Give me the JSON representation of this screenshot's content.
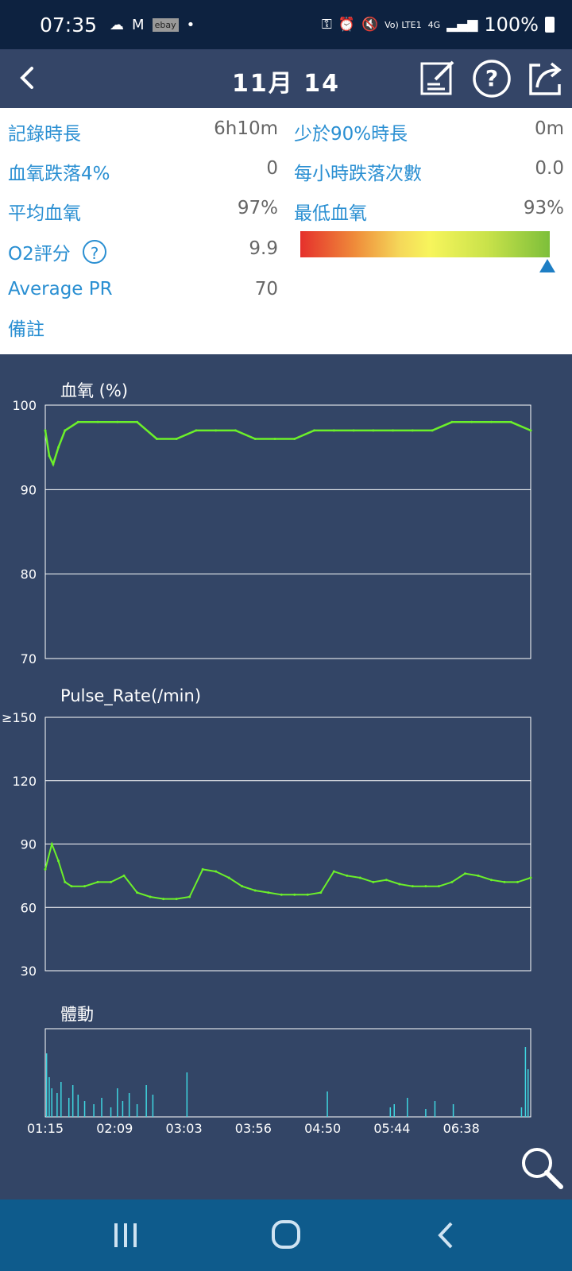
{
  "status_bar": {
    "time": "07:35",
    "mail_letter": "M",
    "ebay_label": "ebay",
    "network": "Vo) LTE1",
    "network_type": "4G",
    "battery": "100%"
  },
  "header": {
    "title": "11月 14"
  },
  "summary": {
    "rows": [
      {
        "label": "記錄時長",
        "value": "6h10m"
      },
      {
        "label": "血氧跌落4%",
        "value": "0"
      },
      {
        "label": "平均血氧",
        "value": "97%"
      },
      {
        "label": "O2評分",
        "value": "9.9"
      },
      {
        "label": "Average PR",
        "value": "70"
      },
      {
        "label": "備註",
        "value": ""
      }
    ],
    "right_rows": [
      {
        "label": "少於90%時長",
        "value": "0m"
      },
      {
        "label": "每小時跌落次數",
        "value": "0.0"
      },
      {
        "label": "最低血氧",
        "value": "93%"
      }
    ],
    "o2_help_symbol": "?",
    "score_level": 0.99
  },
  "colors": {
    "header_bg": "#344567",
    "chart_bg": "#334566",
    "series_line": "#6cf02a",
    "motion_line": "#3fd6e0",
    "label_blue": "#2a8fd2",
    "nav_bg": "#0e5b8c",
    "status_bg": "#0d2240"
  },
  "chart_data": [
    {
      "type": "line",
      "title": "血氧 (%)",
      "ylim": [
        70,
        100
      ],
      "y_ticks": [
        "100",
        "90",
        "80",
        "70"
      ],
      "x_range": [
        "01:15",
        "07:25"
      ],
      "series": [
        {
          "x": [
            "01:15",
            "01:18",
            "01:21",
            "01:25",
            "01:30",
            "01:40",
            "01:55",
            "02:10",
            "02:25",
            "02:40",
            "02:55",
            "03:10",
            "03:25",
            "03:40",
            "03:55",
            "04:10",
            "04:25",
            "04:40",
            "04:55",
            "05:10",
            "05:25",
            "05:40",
            "05:55",
            "06:10",
            "06:25",
            "06:40",
            "06:55",
            "07:10",
            "07:25"
          ],
          "values": [
            97,
            94,
            93,
            95,
            97,
            98,
            98,
            98,
            98,
            96,
            96,
            97,
            97,
            97,
            96,
            96,
            96,
            97,
            97,
            97,
            97,
            97,
            97,
            97,
            98,
            98,
            98,
            98,
            97
          ]
        }
      ]
    },
    {
      "type": "line",
      "title": "Pulse_Rate(/min)",
      "ylim": [
        30,
        150
      ],
      "y_ticks": [
        "≥150",
        "120",
        "90",
        "60",
        "30"
      ],
      "x_range": [
        "01:15",
        "07:25"
      ],
      "series": [
        {
          "x": [
            "01:15",
            "01:20",
            "01:25",
            "01:30",
            "01:35",
            "01:45",
            "01:55",
            "02:05",
            "02:15",
            "02:25",
            "02:35",
            "02:45",
            "02:55",
            "03:05",
            "03:15",
            "03:25",
            "03:35",
            "03:45",
            "03:55",
            "04:05",
            "04:15",
            "04:25",
            "04:35",
            "04:45",
            "04:55",
            "05:05",
            "05:15",
            "05:25",
            "05:35",
            "05:45",
            "05:55",
            "06:05",
            "06:15",
            "06:25",
            "06:35",
            "06:45",
            "06:55",
            "07:05",
            "07:15",
            "07:25"
          ],
          "values": [
            78,
            90,
            82,
            72,
            70,
            70,
            72,
            72,
            75,
            67,
            65,
            64,
            64,
            65,
            78,
            77,
            74,
            70,
            68,
            67,
            66,
            66,
            66,
            67,
            77,
            75,
            74,
            72,
            73,
            71,
            70,
            70,
            70,
            72,
            76,
            75,
            73,
            72,
            72,
            74
          ]
        }
      ]
    },
    {
      "type": "bar",
      "title": "體動",
      "x_ticks": [
        "01:15",
        "02:09",
        "03:03",
        "03:56",
        "04:50",
        "05:44",
        "06:38"
      ],
      "x_range": [
        "01:15",
        "07:25"
      ],
      "series": [
        {
          "x": [
            "01:16",
            "01:18",
            "01:20",
            "01:24",
            "01:27",
            "01:33",
            "01:36",
            "01:40",
            "01:45",
            "01:52",
            "01:58",
            "02:05",
            "02:10",
            "02:14",
            "02:19",
            "02:25",
            "02:32",
            "02:37",
            "03:03",
            "04:50",
            "05:38",
            "05:41",
            "05:51",
            "06:05",
            "06:12",
            "06:26",
            "07:18",
            "07:21",
            "07:23"
          ],
          "values": [
            40,
            25,
            18,
            15,
            22,
            12,
            20,
            14,
            10,
            8,
            12,
            6,
            18,
            10,
            15,
            8,
            20,
            14,
            28,
            16,
            6,
            8,
            12,
            5,
            10,
            8,
            6,
            44,
            30
          ]
        }
      ]
    }
  ]
}
